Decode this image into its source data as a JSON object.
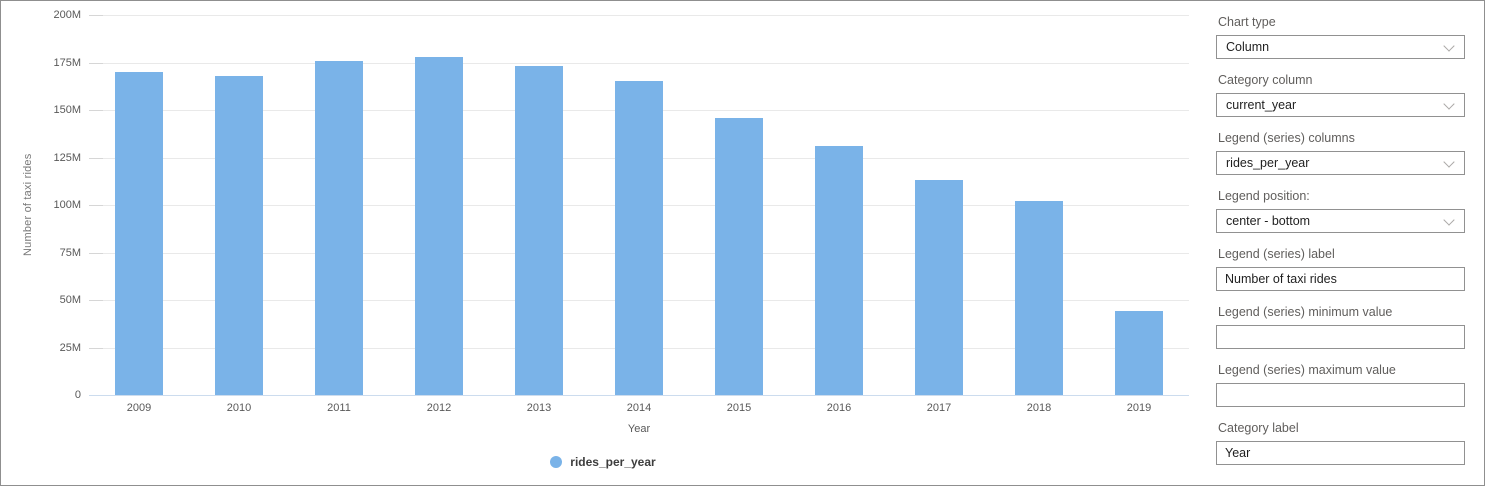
{
  "chart_data": {
    "type": "bar",
    "title": "",
    "categories": [
      "2009",
      "2010",
      "2011",
      "2012",
      "2013",
      "2014",
      "2015",
      "2016",
      "2017",
      "2018",
      "2019"
    ],
    "series": [
      {
        "name": "rides_per_year",
        "values": [
          170,
          168,
          176,
          178,
          173,
          165,
          146,
          131,
          113,
          102,
          44
        ]
      }
    ],
    "values_unit": "millions",
    "xlabel": "Year",
    "ylabel": "Number of taxi rides",
    "ylim": [
      0,
      200
    ],
    "ytick_step": 25,
    "ytick_labels": [
      "0",
      "25M",
      "50M",
      "75M",
      "100M",
      "125M",
      "150M",
      "175M",
      "200M"
    ],
    "grid": true,
    "legend_position": "center-bottom",
    "legend_entries": [
      "rides_per_year"
    ],
    "bar_color": "#7ab3e8"
  },
  "panel": {
    "fields": [
      {
        "label": "Chart type",
        "value": "Column",
        "type": "select"
      },
      {
        "label": "Category column",
        "value": "current_year",
        "type": "select"
      },
      {
        "label": "Legend (series) columns",
        "value": "rides_per_year",
        "type": "select"
      },
      {
        "label": "Legend position:",
        "value": "center - bottom",
        "type": "select"
      },
      {
        "label": "Legend (series) label",
        "value": "Number of taxi rides",
        "type": "text"
      },
      {
        "label": "Legend (series) minimum value",
        "value": "",
        "type": "text"
      },
      {
        "label": "Legend (series) maximum value",
        "value": "",
        "type": "text"
      },
      {
        "label": "Category label",
        "value": "Year",
        "type": "text"
      }
    ]
  },
  "colors": {
    "bar": "#7ab3e8",
    "grid_line": "#e9e9e9",
    "zero_line": "#ccdcee",
    "tick_text": "#595959",
    "axis_title_text": "#787878",
    "legend_text": "#3d3d3d",
    "panel_label_text": "#605e5c",
    "control_border": "#919191",
    "page_border": "#8f8f8f"
  }
}
